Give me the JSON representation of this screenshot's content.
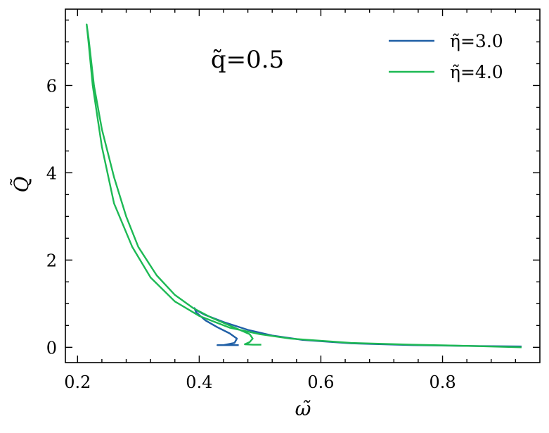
{
  "chart_data": {
    "type": "line",
    "xlabel": "ω̃",
    "ylabel": "Q̃",
    "xlim": [
      0.18,
      0.96
    ],
    "ylim": [
      -0.35,
      7.75
    ],
    "xticks": [
      0.2,
      0.4,
      0.6,
      0.8
    ],
    "xtick_labels": [
      "0.2",
      "0.4",
      "0.6",
      "0.8"
    ],
    "yticks": [
      0,
      2,
      4,
      6
    ],
    "ytick_labels": [
      "0",
      "2",
      "4",
      "6"
    ],
    "annotation": "q̃=0.5",
    "legend_position": "top-right",
    "grid": false,
    "series": [
      {
        "name": "η̃=3.0",
        "color": "#1f5fa6",
        "points": [
          [
            0.93,
            0.02
          ],
          [
            0.85,
            0.03
          ],
          [
            0.75,
            0.05
          ],
          [
            0.65,
            0.09
          ],
          [
            0.57,
            0.17
          ],
          [
            0.52,
            0.27
          ],
          [
            0.48,
            0.4
          ],
          [
            0.44,
            0.58
          ],
          [
            0.41,
            0.74
          ],
          [
            0.395,
            0.85
          ],
          [
            0.392,
            0.9
          ],
          [
            0.395,
            0.8
          ],
          [
            0.41,
            0.62
          ],
          [
            0.43,
            0.46
          ],
          [
            0.45,
            0.32
          ],
          [
            0.462,
            0.2
          ],
          [
            0.458,
            0.1
          ],
          [
            0.44,
            0.05
          ],
          [
            0.43,
            0.05
          ],
          [
            0.445,
            0.05
          ],
          [
            0.465,
            0.05
          ]
        ]
      },
      {
        "name": "η̃=4.0",
        "color": "#1db954",
        "points": [
          [
            0.93,
            0.0
          ],
          [
            0.85,
            0.03
          ],
          [
            0.75,
            0.06
          ],
          [
            0.65,
            0.1
          ],
          [
            0.55,
            0.2
          ],
          [
            0.5,
            0.3
          ],
          [
            0.45,
            0.45
          ],
          [
            0.4,
            0.72
          ],
          [
            0.36,
            1.05
          ],
          [
            0.32,
            1.6
          ],
          [
            0.29,
            2.3
          ],
          [
            0.26,
            3.3
          ],
          [
            0.24,
            4.6
          ],
          [
            0.225,
            6.0
          ],
          [
            0.218,
            7.0
          ],
          [
            0.215,
            7.4
          ],
          [
            0.218,
            7.1
          ],
          [
            0.227,
            6.0
          ],
          [
            0.24,
            5.0
          ],
          [
            0.26,
            3.9
          ],
          [
            0.28,
            3.0
          ],
          [
            0.3,
            2.3
          ],
          [
            0.33,
            1.65
          ],
          [
            0.36,
            1.2
          ],
          [
            0.39,
            0.9
          ],
          [
            0.42,
            0.68
          ],
          [
            0.45,
            0.5
          ],
          [
            0.47,
            0.38
          ],
          [
            0.483,
            0.3
          ],
          [
            0.488,
            0.2
          ],
          [
            0.483,
            0.12
          ],
          [
            0.475,
            0.07
          ],
          [
            0.488,
            0.06
          ],
          [
            0.502,
            0.06
          ]
        ]
      }
    ]
  }
}
